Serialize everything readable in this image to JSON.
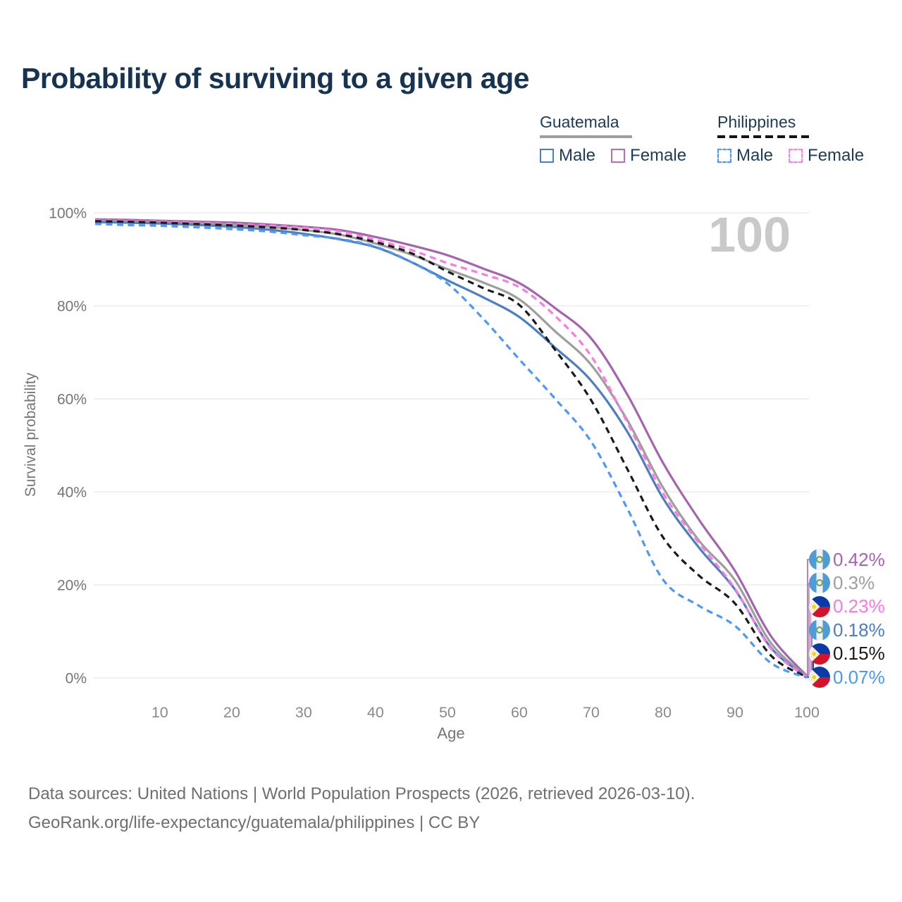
{
  "title": "Probability of surviving to a given age",
  "legend": {
    "groups": [
      {
        "name": "Guatemala",
        "line_style": "solid",
        "rule_color": "#9e9e9e",
        "items": [
          {
            "label": "Male",
            "color": "#4d7ebf",
            "swatch_style": "solid"
          },
          {
            "label": "Female",
            "color": "#b272b8",
            "swatch_style": "solid"
          }
        ]
      },
      {
        "name": "Philippines",
        "line_style": "dashed",
        "rule_color": "#141414",
        "items": [
          {
            "label": "Male",
            "color": "#4d97ff",
            "swatch_style": "dashed"
          },
          {
            "label": "Female",
            "color": "#ff85e2",
            "swatch_style": "dashed"
          }
        ]
      }
    ]
  },
  "chart_data": {
    "type": "line",
    "title": "Probability of surviving to a given age",
    "xlabel": "Age",
    "ylabel": "Survival probability",
    "age_label": "100",
    "xlim": [
      1,
      100
    ],
    "ylim": [
      0,
      100
    ],
    "x_ticks": [
      10,
      20,
      30,
      40,
      50,
      60,
      70,
      80,
      90,
      100
    ],
    "y_ticks": [
      {
        "value": 100,
        "label": "100%"
      },
      {
        "value": 80,
        "label": "80%"
      },
      {
        "value": 60,
        "label": "60%"
      },
      {
        "value": 40,
        "label": "40%"
      },
      {
        "value": 20,
        "label": "20%"
      },
      {
        "value": 0,
        "label": "0%"
      }
    ],
    "grid": "horizontal",
    "legend_position": "top-right",
    "ages": [
      1,
      5,
      10,
      15,
      20,
      25,
      30,
      35,
      40,
      45,
      50,
      55,
      60,
      65,
      70,
      75,
      80,
      85,
      90,
      95,
      100
    ],
    "series": [
      {
        "id": "guatemala-female",
        "country": "Guatemala",
        "sex": "Female",
        "color": "#a565ae",
        "line_style": "solid",
        "end_label": "0.42%",
        "end_value": 0.42,
        "values": [
          98.6,
          98.5,
          98.3,
          98.1,
          97.9,
          97.5,
          97.0,
          96.3,
          94.8,
          93.0,
          90.9,
          88.0,
          84.9,
          79.5,
          73.0,
          61.0,
          46.2,
          34.0,
          23.0,
          9.0,
          0.42
        ]
      },
      {
        "id": "guatemala-both",
        "country": "Guatemala",
        "sex": "Both",
        "color": "#9e9e9e",
        "line_style": "solid",
        "end_label": "0.3%",
        "end_value": 0.3,
        "values": [
          98.3,
          98.2,
          98.0,
          97.8,
          97.5,
          97.0,
          96.3,
          95.3,
          93.4,
          91.0,
          87.9,
          85.0,
          81.4,
          74.5,
          67.3,
          55.5,
          40.9,
          29.5,
          21.0,
          7.5,
          0.3
        ]
      },
      {
        "id": "philippines-female",
        "country": "Philippines",
        "sex": "Female",
        "color": "#ff7bdf",
        "line_style": "dashed",
        "end_label": "0.23%",
        "end_value": 0.23,
        "values": [
          98.4,
          98.3,
          98.1,
          97.9,
          97.6,
          97.3,
          96.8,
          96.0,
          94.2,
          92.0,
          89.2,
          86.8,
          84.0,
          77.8,
          69.2,
          55.0,
          39.7,
          29.0,
          19.2,
          6.3,
          0.23
        ]
      },
      {
        "id": "guatemala-male",
        "country": "Guatemala",
        "sex": "Male",
        "color": "#4d7ebf",
        "line_style": "solid",
        "end_label": "0.18%",
        "end_value": 0.18,
        "values": [
          98.0,
          97.9,
          97.7,
          97.4,
          97.0,
          96.4,
          95.5,
          94.3,
          92.6,
          89.4,
          85.5,
          81.8,
          77.6,
          71.0,
          63.9,
          53.0,
          38.6,
          28.0,
          19.0,
          6.5,
          0.18
        ]
      },
      {
        "id": "philippines-both",
        "country": "Philippines",
        "sex": "Both",
        "color": "#1a1a1a",
        "line_style": "dashed",
        "end_label": "0.15%",
        "end_value": 0.15,
        "values": [
          98.2,
          98.1,
          97.9,
          97.6,
          97.3,
          96.9,
          96.3,
          95.4,
          93.7,
          91.3,
          87.4,
          83.8,
          80.2,
          70.5,
          59.7,
          45.0,
          30.2,
          22.0,
          16.0,
          4.8,
          0.15
        ]
      },
      {
        "id": "philippines-male",
        "country": "Philippines",
        "sex": "Male",
        "color": "#4d97ff",
        "line_style": "dashed",
        "end_label": "0.07%",
        "end_value": 0.07,
        "values": [
          97.6,
          97.4,
          97.2,
          96.9,
          96.5,
          96.0,
          95.2,
          94.4,
          92.7,
          89.4,
          84.8,
          77.2,
          68.5,
          60.0,
          50.8,
          36.5,
          21.1,
          15.5,
          11.2,
          3.2,
          0.07
        ]
      }
    ]
  },
  "footer": {
    "line1": "Data sources: United Nations | World Population Prospects (2026, retrieved 2026-03-10).",
    "line2": "GeoRank.org/life-expectancy/guatemala/philippines | CC BY"
  }
}
